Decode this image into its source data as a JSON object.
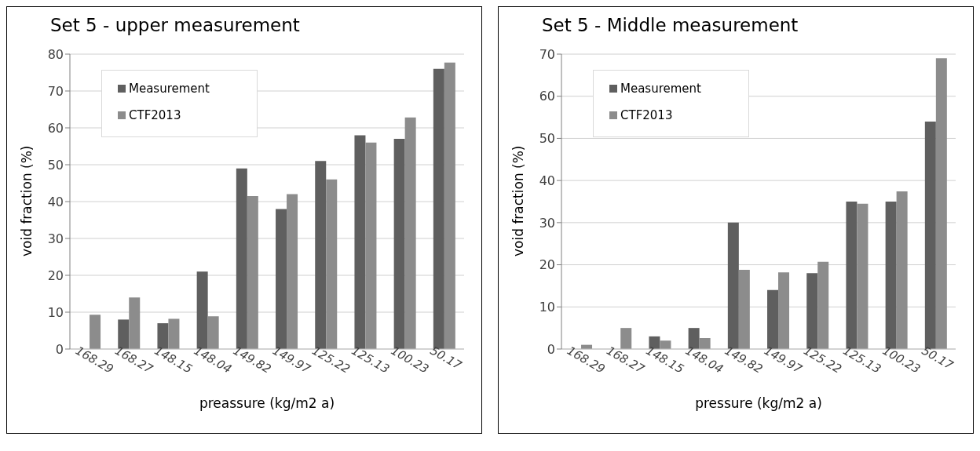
{
  "chart_data": [
    {
      "type": "bar",
      "title": "Set 5 - upper measurement",
      "xlabel": "preassure (kg/m2 a)",
      "ylabel": "void fraction (%)",
      "categories": [
        "168.29",
        "168.27",
        "148.15",
        "148.04",
        "149.82",
        "149.97",
        "125.22",
        "125.13",
        "100.23",
        "50.17"
      ],
      "series": [
        {
          "name": "Measurement",
          "color": "#5f5f5f",
          "values": [
            null,
            8,
            7,
            21,
            49,
            38,
            51,
            58,
            57,
            76
          ]
        },
        {
          "name": "CTF2013",
          "color": "#8c8c8c",
          "values": [
            9.3,
            14,
            8.2,
            8.9,
            41.5,
            42,
            46,
            56,
            62.8,
            77.7
          ]
        }
      ],
      "ylim": [
        0,
        80
      ],
      "yticks": [
        0,
        10,
        20,
        30,
        40,
        50,
        60,
        70,
        80
      ],
      "grid": "y",
      "legend": "top left"
    },
    {
      "type": "bar",
      "title": "Set 5 - Middle measurement",
      "xlabel": "pressure (kg/m2 a)",
      "ylabel": "void fraction (%)",
      "categories": [
        "168.29",
        "168.27",
        "148.15",
        "148.04",
        "149.82",
        "149.97",
        "125.22",
        "125.13",
        "100.23",
        "50.17"
      ],
      "series": [
        {
          "name": "Measurement",
          "color": "#5f5f5f",
          "values": [
            null,
            null,
            3,
            5,
            30,
            14,
            18,
            35,
            35,
            54
          ]
        },
        {
          "name": "CTF2013",
          "color": "#8c8c8c",
          "values": [
            1,
            5,
            2,
            2.6,
            18.8,
            18.2,
            20.7,
            34.5,
            37.4,
            69
          ]
        }
      ],
      "ylim": [
        0,
        70
      ],
      "yticks": [
        0,
        10,
        20,
        30,
        40,
        50,
        60,
        70
      ],
      "grid": "y",
      "legend": "top left"
    }
  ]
}
